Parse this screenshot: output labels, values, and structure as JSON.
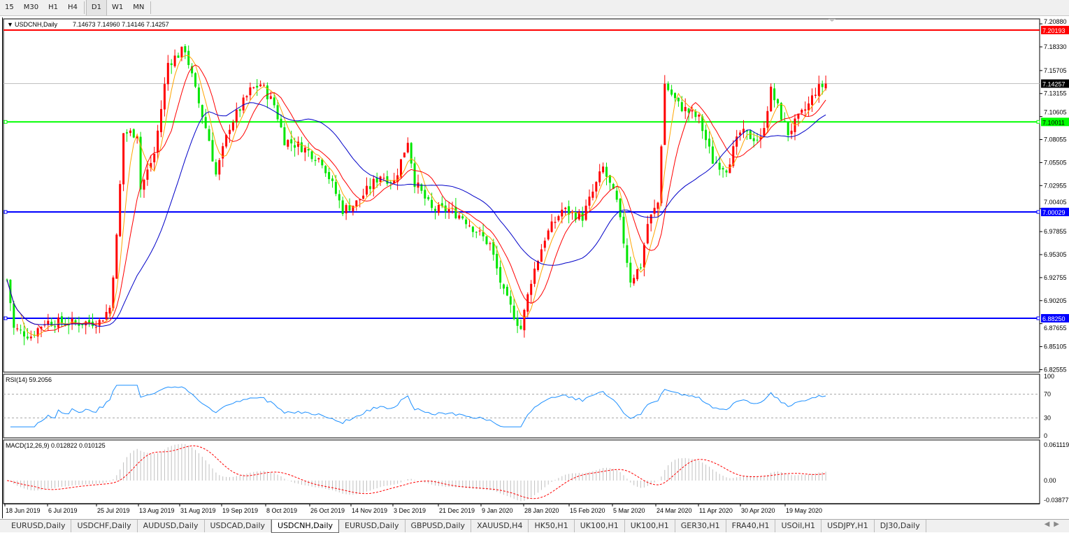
{
  "toolbar": {
    "timeframes": [
      "15",
      "M30",
      "H1",
      "H4",
      "D1",
      "W1",
      "MN"
    ],
    "active": "D1"
  },
  "chart": {
    "symbol_label": "USDCNH,Daily",
    "ohlc": "7.14673 7.14960 7.14146 7.14257",
    "current_price": "7.14257",
    "price_ticks": [
      "7.20880",
      "7.18330",
      "7.15705",
      "7.13155",
      "7.10605",
      "7.08055",
      "7.05505",
      "7.02955",
      "7.00405",
      "6.97855",
      "6.95305",
      "6.92755",
      "6.90205",
      "6.87655",
      "6.85105",
      "6.82555"
    ],
    "hlines": [
      {
        "price": 7.20193,
        "label": "7.20193",
        "color": "#ff0000"
      },
      {
        "price": 7.10011,
        "label": "7.10011",
        "color": "#00ff00"
      },
      {
        "price": 7.00029,
        "label": "7.00029",
        "color": "#0000ff"
      },
      {
        "price": 6.8825,
        "label": "6.88250",
        "color": "#0000ff"
      }
    ],
    "colors": {
      "up": "#ff0000",
      "down": "#00e600",
      "ma_fast": "#ffa500",
      "ma_mid": "#ff0000",
      "ma_slow": "#0000c8"
    },
    "date_ticks": [
      "18 Jun 2019",
      "6 Jul 2019",
      "25 Jul 2019",
      "13 Aug 2019",
      "31 Aug 2019",
      "19 Sep 2019",
      "8 Oct 2019",
      "26 Oct 2019",
      "14 Nov 2019",
      "3 Dec 2019",
      "21 Dec 2019",
      "9 Jan 2020",
      "28 Jan 2020",
      "15 Feb 2020",
      "5 Mar 2020",
      "24 Mar 2020",
      "11 Apr 2020",
      "30 Apr 2020",
      "19 May 2020"
    ]
  },
  "chart_data": {
    "type": "candlestick",
    "close_path": [
      [
        0,
        6.9252
      ],
      [
        1,
        6.9
      ],
      [
        2,
        6.8709
      ],
      [
        7,
        6.8631
      ],
      [
        11,
        6.8787
      ],
      [
        19,
        6.8771
      ],
      [
        27,
        6.8787
      ],
      [
        30,
        6.8942
      ],
      [
        32,
        6.9717
      ],
      [
        34,
        7.0879
      ],
      [
        38,
        7.0879
      ],
      [
        39,
        7.026
      ],
      [
        43,
        7.0647
      ],
      [
        47,
        7.1655
      ],
      [
        52,
        7.181
      ],
      [
        55,
        7.1345
      ],
      [
        59,
        7.0802
      ],
      [
        61,
        7.0414
      ],
      [
        65,
        7.0957
      ],
      [
        71,
        7.1345
      ],
      [
        74,
        7.1422
      ],
      [
        78,
        7.119
      ],
      [
        81,
        7.0802
      ],
      [
        86,
        7.0725
      ],
      [
        92,
        7.057
      ],
      [
        98,
        7.0027
      ],
      [
        102,
        7.0104
      ],
      [
        109,
        7.0414
      ],
      [
        113,
        7.0337
      ],
      [
        117,
        7.0802
      ],
      [
        119,
        7.0337
      ],
      [
        124,
        7.0027
      ],
      [
        129,
        7.0027
      ],
      [
        133,
        6.9949
      ],
      [
        141,
        6.9639
      ],
      [
        145,
        6.9097
      ],
      [
        150,
        6.8709
      ],
      [
        153,
        6.9252
      ],
      [
        157,
        6.9717
      ],
      [
        162,
        7.0027
      ],
      [
        168,
        6.9949
      ],
      [
        174,
        7.0492
      ],
      [
        178,
        7.0104
      ],
      [
        182,
        6.9252
      ],
      [
        185,
        6.9407
      ],
      [
        187,
        6.9872
      ],
      [
        190,
        7.0104
      ],
      [
        192,
        7.1422
      ],
      [
        196,
        7.119
      ],
      [
        202,
        7.1035
      ],
      [
        206,
        7.057
      ],
      [
        210,
        7.0492
      ],
      [
        214,
        7.0879
      ],
      [
        220,
        7.0802
      ],
      [
        223,
        7.1345
      ],
      [
        228,
        7.0879
      ],
      [
        234,
        7.119
      ],
      [
        236,
        7.1345
      ],
      [
        239,
        7.1426
      ]
    ],
    "ylim": [
      6.8228,
      7.2143
    ],
    "indicators": {
      "rsi": {
        "label": "RSI(14) 59.2056",
        "levels": [
          70,
          30
        ],
        "ticks": [
          "100",
          "70",
          "30",
          "0"
        ],
        "color": "#1e90ff"
      },
      "macd": {
        "label": "MACD(12,26,9) 0.012822 0.010125",
        "ticks": [
          "0.061119",
          "0.00",
          "-0.03877"
        ],
        "hist_color": "#c0c0c0",
        "signal_color": "#ff0000"
      }
    }
  },
  "tabs": [
    "EURUSD,Daily",
    "USDCHF,Daily",
    "AUDUSD,Daily",
    "USDCAD,Daily",
    "USDCNH,Daily",
    "EURUSD,Daily",
    "GBPUSD,Daily",
    "XAUUSD,H4",
    "HK50,H1",
    "UK100,H1",
    "UK100,H1",
    "GER30,H1",
    "FRA40,H1",
    "USOil,H1",
    "USDJPY,H1",
    "DJ30,Daily"
  ],
  "active_tab": 4
}
